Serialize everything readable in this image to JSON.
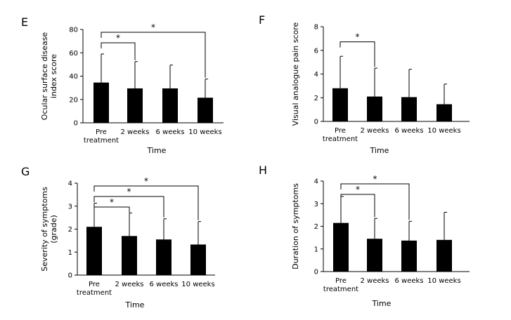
{
  "figure": {
    "panels": [
      {
        "letter": "E",
        "chart_data": {
          "type": "bar",
          "categories": [
            "Pre\ntreatment",
            "2 weeks",
            "6 weeks",
            "10 weeks"
          ],
          "values": [
            34.5,
            29.5,
            29.5,
            21.5
          ],
          "errors": [
            24.5,
            23,
            20,
            16
          ],
          "xlabel": "Time",
          "ylabel": "Ocular surface disease\nindex score",
          "ylim": [
            0,
            80
          ],
          "yticks": [
            0,
            20,
            40,
            60,
            80
          ],
          "grid": false,
          "significance": [
            {
              "from": 0,
              "to": 1,
              "label": "*"
            },
            {
              "from": 0,
              "to": 3,
              "label": "*"
            }
          ]
        }
      },
      {
        "letter": "F",
        "chart_data": {
          "type": "bar",
          "categories": [
            "Pre\ntreatment",
            "2 weeks",
            "6 weeks",
            "10 weeks"
          ],
          "values": [
            2.8,
            2.1,
            2.05,
            1.45
          ],
          "errors": [
            2.7,
            2.4,
            2.35,
            1.7
          ],
          "xlabel": "Time",
          "ylabel": "Visual analogue pain score",
          "ylim": [
            0,
            8
          ],
          "yticks": [
            0,
            2,
            4,
            6,
            8
          ],
          "grid": false,
          "significance": [
            {
              "from": 0,
              "to": 1,
              "label": "*"
            }
          ]
        }
      },
      {
        "letter": "G",
        "chart_data": {
          "type": "bar",
          "categories": [
            "Pre\ntreatment",
            "2 weeks",
            "6 weeks",
            "10 weeks"
          ],
          "values": [
            2.1,
            1.7,
            1.55,
            1.33
          ],
          "errors": [
            1.03,
            1.0,
            0.9,
            1.0
          ],
          "xlabel": "Time",
          "ylabel": "Severity of symptoms\n(grade)",
          "ylim": [
            0,
            4
          ],
          "yticks": [
            0,
            1,
            2,
            3,
            4
          ],
          "grid": false,
          "significance": [
            {
              "from": 0,
              "to": 1,
              "label": "*"
            },
            {
              "from": 0,
              "to": 2,
              "label": "*"
            },
            {
              "from": 0,
              "to": 3,
              "label": "*"
            }
          ]
        }
      },
      {
        "letter": "H",
        "chart_data": {
          "type": "bar",
          "categories": [
            "Pre\ntreatment",
            "2 weeks",
            "6 weeks",
            "10 weeks"
          ],
          "values": [
            2.15,
            1.45,
            1.37,
            1.4
          ],
          "errors": [
            1.17,
            0.9,
            0.85,
            1.22
          ],
          "xlabel": "Time",
          "ylabel": "Duration of symptoms",
          "ylim": [
            0,
            4
          ],
          "yticks": [
            0,
            1,
            2,
            3,
            4
          ],
          "grid": false,
          "significance": [
            {
              "from": 0,
              "to": 1,
              "label": "*"
            },
            {
              "from": 0,
              "to": 2,
              "label": "*"
            }
          ]
        }
      }
    ]
  }
}
